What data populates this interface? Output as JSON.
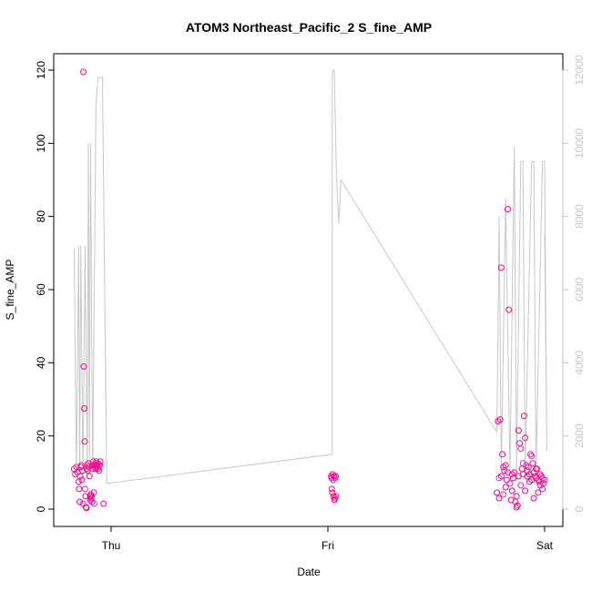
{
  "chart_data": {
    "type": "scatter",
    "title": "ATOM3 Northeast_Pacific_2 S_fine_AMP",
    "xlabel": "Date",
    "ylabel": "S_fine_AMP",
    "x_ticks": [
      "Thu",
      "Fri",
      "Sat"
    ],
    "ylim": [
      0,
      120
    ],
    "y_ticks": [
      "0",
      "20",
      "40",
      "60",
      "80",
      "100",
      "120"
    ],
    "y2lim": [
      0,
      12000
    ],
    "y2_ticks": [
      "0",
      "2000",
      "4000",
      "6000",
      "8000",
      "10000",
      "12000"
    ],
    "grid": false,
    "colors": {
      "points_primary": "#ff0080",
      "points_secondary": "#e81ccf",
      "line": "#c8c8c8",
      "axis": "#000000",
      "right_axis": "#c8c8c8"
    },
    "series": [
      {
        "kind": "points",
        "x_units": "days since Thu 00:00",
        "points": [
          [
            -0.17,
            11.0
          ],
          [
            -0.165,
            9.5
          ],
          [
            -0.16,
            11.5
          ],
          [
            -0.155,
            10.0
          ],
          [
            -0.15,
            7.5
          ],
          [
            -0.148,
            5.5
          ],
          [
            -0.145,
            2.0
          ],
          [
            -0.142,
            9.0
          ],
          [
            -0.14,
            11.5
          ],
          [
            -0.137,
            12.0
          ],
          [
            -0.135,
            8.0
          ],
          [
            -0.132,
            10.5
          ],
          [
            -0.13,
            1.5
          ],
          [
            -0.128,
            119.5
          ],
          [
            -0.126,
            39.0
          ],
          [
            -0.124,
            27.5
          ],
          [
            -0.122,
            18.5
          ],
          [
            -0.12,
            5.5
          ],
          [
            -0.118,
            3.5
          ],
          [
            -0.116,
            0.5
          ],
          [
            -0.114,
            0.3
          ],
          [
            -0.112,
            11.0
          ],
          [
            -0.11,
            12.0
          ],
          [
            -0.108,
            10.5
          ],
          [
            -0.105,
            12.5
          ],
          [
            -0.103,
            11.5
          ],
          [
            -0.1,
            9.0
          ],
          [
            -0.098,
            3.5
          ],
          [
            -0.096,
            2.5
          ],
          [
            -0.094,
            4.0
          ],
          [
            -0.092,
            3.0
          ],
          [
            -0.09,
            3.5
          ],
          [
            -0.088,
            2.0
          ],
          [
            -0.086,
            12.0
          ],
          [
            -0.084,
            11.0
          ],
          [
            -0.082,
            13.0
          ],
          [
            -0.08,
            4.5
          ],
          [
            -0.078,
            1.5
          ],
          [
            -0.076,
            12.0
          ],
          [
            -0.074,
            11.5
          ],
          [
            -0.072,
            12.5
          ],
          [
            -0.07,
            11.0
          ],
          [
            -0.068,
            13.0
          ],
          [
            -0.066,
            12.0
          ],
          [
            -0.064,
            11.5
          ],
          [
            -0.062,
            12.5
          ],
          [
            -0.06,
            11.0
          ],
          [
            -0.058,
            12.0
          ],
          [
            -0.055,
            10.5
          ],
          [
            -0.052,
            12.0
          ],
          [
            -0.05,
            13.0
          ],
          [
            -0.035,
            1.5
          ],
          [
            1.015,
            9.0
          ],
          [
            1.017,
            8.5
          ],
          [
            1.018,
            5.5
          ],
          [
            1.02,
            4.5
          ],
          [
            1.022,
            9.5
          ],
          [
            1.024,
            8.0
          ],
          [
            1.026,
            3.5
          ],
          [
            1.028,
            9.0
          ],
          [
            1.03,
            2.5
          ],
          [
            1.032,
            3.0
          ],
          [
            1.034,
            8.5
          ],
          [
            1.036,
            9.0
          ],
          [
            1.038,
            3.5
          ],
          [
            1.78,
            4.5
          ],
          [
            1.785,
            24.0
          ],
          [
            1.79,
            8.5
          ],
          [
            1.795,
            24.5
          ],
          [
            1.8,
            66.0
          ],
          [
            1.805,
            15.0
          ],
          [
            1.81,
            11.5
          ],
          [
            1.815,
            10.5
          ],
          [
            1.82,
            12.0
          ],
          [
            1.825,
            8.0
          ],
          [
            1.83,
            82.0
          ],
          [
            1.835,
            54.5
          ],
          [
            1.84,
            7.0
          ],
          [
            1.845,
            2.5
          ],
          [
            1.85,
            9.5
          ],
          [
            1.855,
            8.5
          ],
          [
            1.86,
            10.0
          ],
          [
            1.865,
            2.0
          ],
          [
            1.87,
            0.5
          ],
          [
            1.875,
            1.0
          ],
          [
            1.88,
            21.5
          ],
          [
            1.885,
            18.0
          ],
          [
            1.89,
            16.5
          ],
          [
            1.895,
            11.0
          ],
          [
            1.9,
            9.5
          ],
          [
            1.905,
            25.5
          ],
          [
            1.91,
            19.5
          ],
          [
            1.915,
            12.0
          ],
          [
            1.92,
            9.0
          ],
          [
            1.925,
            11.5
          ],
          [
            1.93,
            7.5
          ],
          [
            1.935,
            15.0
          ],
          [
            1.94,
            14.5
          ],
          [
            1.945,
            12.5
          ],
          [
            1.95,
            10.0
          ],
          [
            1.955,
            9.0
          ],
          [
            1.96,
            8.5
          ],
          [
            1.965,
            11.0
          ],
          [
            1.97,
            8.0
          ],
          [
            1.975,
            7.5
          ],
          [
            1.98,
            6.5
          ],
          [
            1.985,
            9.0
          ],
          [
            1.99,
            5.5
          ],
          [
            1.995,
            7.0
          ],
          [
            2.0,
            8.0
          ],
          [
            1.79,
            3.0
          ],
          [
            1.8,
            9.0
          ],
          [
            1.81,
            4.0
          ],
          [
            1.82,
            6.0
          ],
          [
            1.83,
            10.0
          ],
          [
            1.85,
            5.0
          ],
          [
            1.87,
            3.5
          ],
          [
            1.89,
            6.5
          ],
          [
            1.91,
            5.0
          ],
          [
            1.93,
            9.5
          ],
          [
            1.95,
            3.0
          ],
          [
            1.97,
            4.5
          ],
          [
            1.99,
            8.5
          ],
          [
            1.96,
            11.0
          ],
          [
            1.98,
            9.5
          ],
          [
            1.94,
            8.0
          ],
          [
            1.92,
            10.5
          ],
          [
            1.9,
            12.5
          ],
          [
            1.88,
            9.0
          ]
        ]
      },
      {
        "kind": "line",
        "axis": "right",
        "points": [
          [
            -0.17,
            7100
          ],
          [
            -0.16,
            1000
          ],
          [
            -0.15,
            7200
          ],
          [
            -0.145,
            1000
          ],
          [
            -0.14,
            7200
          ],
          [
            -0.13,
            1000
          ],
          [
            -0.12,
            7200
          ],
          [
            -0.11,
            1000
          ],
          [
            -0.105,
            10000
          ],
          [
            -0.1,
            1000
          ],
          [
            -0.095,
            10000
          ],
          [
            -0.085,
            1000
          ],
          [
            -0.07,
            11000
          ],
          [
            -0.06,
            11800
          ],
          [
            -0.05,
            11800
          ],
          [
            -0.04,
            11800
          ],
          [
            -0.02,
            700
          ],
          [
            1.02,
            1500
          ],
          [
            1.02,
            12000
          ],
          [
            1.03,
            12000
          ],
          [
            1.04,
            9000
          ],
          [
            1.05,
            7800
          ],
          [
            1.06,
            9000
          ],
          [
            1.78,
            2100
          ],
          [
            1.79,
            8000
          ],
          [
            1.8,
            1000
          ],
          [
            1.82,
            8500
          ],
          [
            1.84,
            1000
          ],
          [
            1.86,
            9900
          ],
          [
            1.87,
            1000
          ],
          [
            1.89,
            9500
          ],
          [
            1.9,
            9500
          ],
          [
            1.91,
            1000
          ],
          [
            1.94,
            9500
          ],
          [
            1.95,
            9500
          ],
          [
            1.96,
            1000
          ],
          [
            1.99,
            9500
          ],
          [
            2.0,
            9500
          ],
          [
            2.01,
            1600
          ],
          [
            2.0,
            7500
          ]
        ]
      }
    ]
  }
}
